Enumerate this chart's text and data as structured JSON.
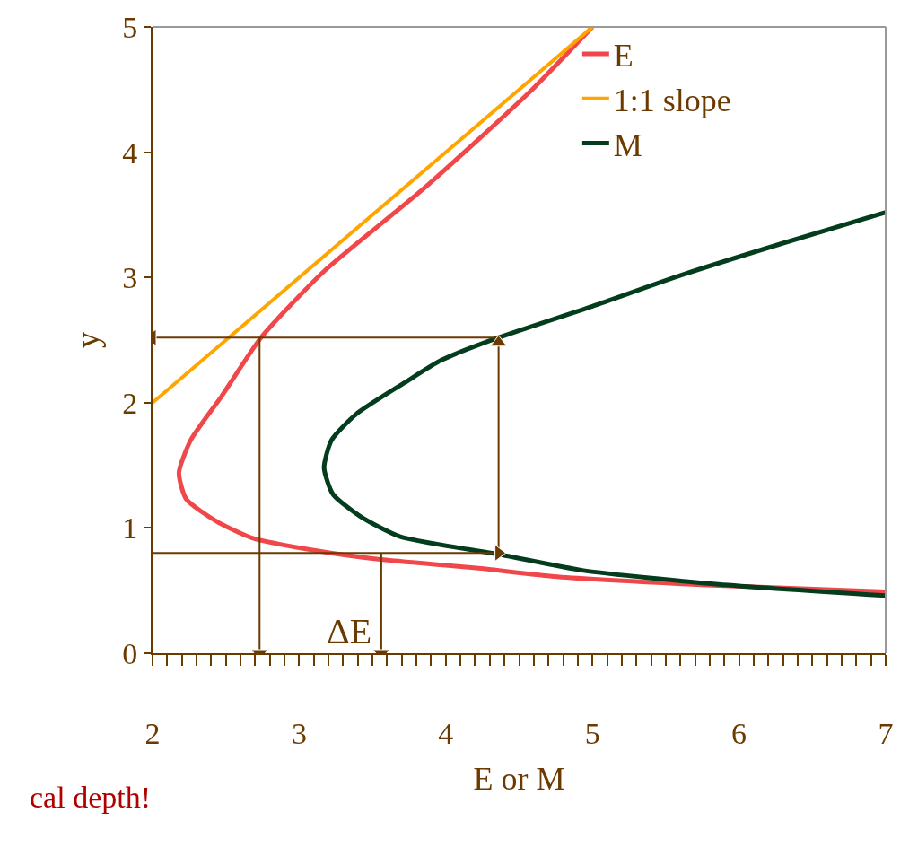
{
  "chart_data": {
    "type": "line",
    "xlabel": "E or M",
    "ylabel": "y",
    "xlim": [
      2,
      7
    ],
    "ylim": [
      0,
      5
    ],
    "xticks": [
      2,
      3,
      4,
      5,
      6,
      7
    ],
    "yticks": [
      0,
      1,
      2,
      3,
      4,
      5
    ],
    "legend": "top right",
    "series": [
      {
        "name": "E",
        "color": "#f0474b",
        "x": [
          5.0,
          4.58,
          3.84,
          3.17,
          2.74,
          2.47,
          2.26,
          2.18,
          2.23,
          2.44,
          2.68,
          3.11,
          3.54,
          4.21,
          4.76,
          5.86,
          7.0
        ],
        "values": [
          5.0,
          4.49,
          3.7,
          3.05,
          2.52,
          2.05,
          1.7,
          1.44,
          1.23,
          1.05,
          0.92,
          0.82,
          0.75,
          0.68,
          0.61,
          0.54,
          0.49
        ]
      },
      {
        "name": "1:1 slope",
        "color": "#ffa500",
        "x": [
          2,
          5
        ],
        "values": [
          2,
          5
        ]
      },
      {
        "name": "M",
        "color": "#033d1e",
        "x": [
          7.0,
          6.29,
          5.61,
          5.0,
          4.36,
          3.97,
          3.72,
          3.39,
          3.22,
          3.17,
          3.23,
          3.42,
          3.69,
          4.36,
          4.94,
          5.86,
          7.0
        ],
        "values": [
          3.52,
          3.27,
          3.02,
          2.77,
          2.52,
          2.34,
          2.16,
          1.91,
          1.7,
          1.48,
          1.27,
          1.09,
          0.93,
          0.79,
          0.66,
          0.55,
          0.46
        ]
      },
      {
        "color": "#6b3a00",
        "marker": "triangle",
        "line_style": "solid",
        "x": [
          4.36,
          2.0
        ],
        "values": [
          2.52,
          2.52
        ]
      },
      {
        "color": "#6b3a00",
        "marker": "triangle",
        "line_style": "solid",
        "x": [
          4.36,
          4.36
        ],
        "values": [
          0.82,
          2.48
        ]
      },
      {
        "color": "#6b3a00",
        "marker": "triangle",
        "line_style": "solid",
        "x": [
          2.0,
          4.36
        ],
        "values": [
          0.8,
          0.8
        ]
      },
      {
        "color": "#6b3a00",
        "marker": "triangle",
        "line_style": "solid",
        "x": [
          2.73,
          2.73
        ],
        "values": [
          2.52,
          0.0
        ]
      },
      {
        "color": "#6b3a00",
        "marker": "triangle",
        "line_style": "solid",
        "x": [
          3.56,
          3.56
        ],
        "values": [
          0.8,
          0.0
        ]
      }
    ],
    "annotations": [
      "ΔE",
      "cal depth!"
    ]
  }
}
